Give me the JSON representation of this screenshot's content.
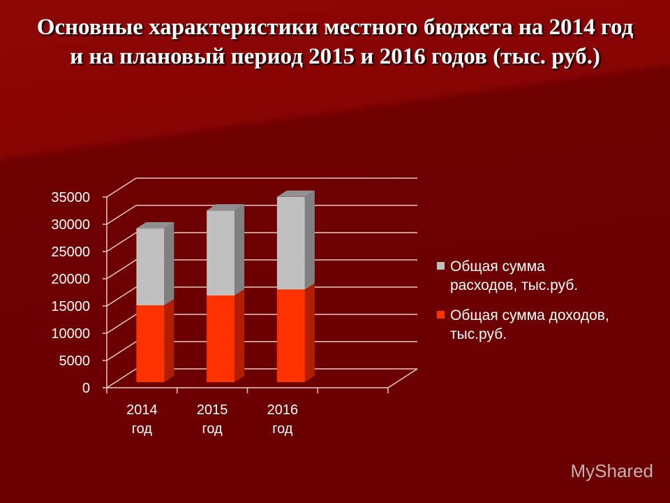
{
  "chart_data": {
    "type": "bar",
    "stacked": true,
    "three_d": true,
    "title": "Основные характеристики местного бюджета на 2014 год и на плановый период 2015 и 2016 годов (тыс. руб.)",
    "categories": [
      [
        "2014",
        "год"
      ],
      [
        "2015",
        "год"
      ],
      [
        "2016",
        "год"
      ]
    ],
    "series": [
      {
        "name": "Общая сумма доходов, тыс.руб.",
        "legend_lines": [
          "Общая сумма доходов,",
          "тыс.руб."
        ],
        "color": "#ff3300",
        "side": "#b02000",
        "values": [
          14100,
          15900,
          17000
        ]
      },
      {
        "name": "Общая сумма расходов, тыс.руб.",
        "legend_lines": [
          "Общая сумма",
          "расходов, тыс.руб."
        ],
        "color": "#c0c0c0",
        "side": "#808080",
        "values": [
          14100,
          15600,
          17000
        ]
      }
    ],
    "ylim": [
      0,
      35000
    ],
    "yticks": [
      "0",
      "5000",
      "10000",
      "15000",
      "20000",
      "25000",
      "30000",
      "35000"
    ],
    "grid": true,
    "legend": "right"
  },
  "watermark": "MyShared"
}
